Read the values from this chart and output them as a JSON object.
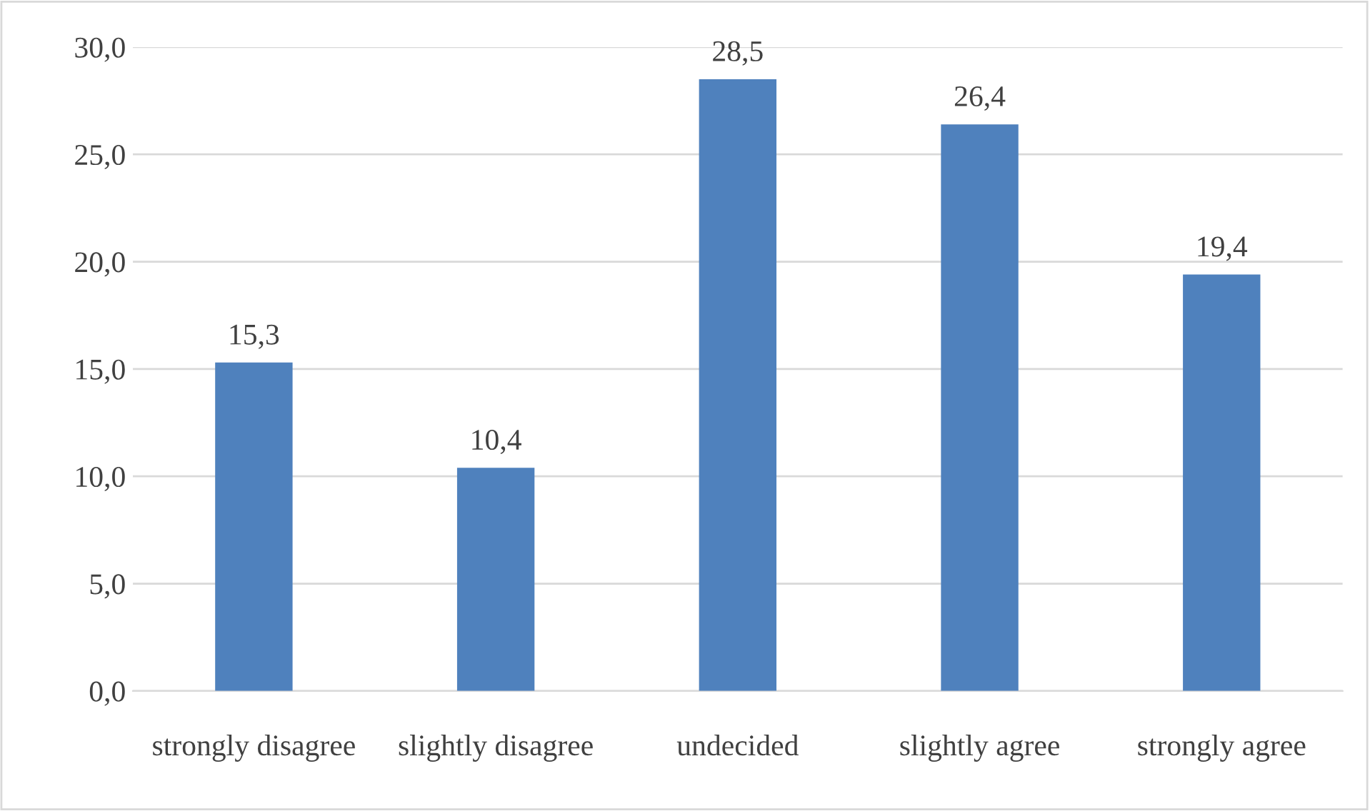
{
  "chart_data": {
    "type": "bar",
    "categories": [
      "strongly disagree",
      "slightly disagree",
      "undecided",
      "slightly agree",
      "strongly agree"
    ],
    "values": [
      15.3,
      10.4,
      28.5,
      26.4,
      19.4
    ],
    "color": "#4f81bd",
    "value_labels": [
      "15,3",
      "10,4",
      "28,5",
      "26,4",
      "19,4"
    ],
    "ylim": [
      0,
      30
    ],
    "yticks": [
      {
        "value": 0,
        "label": "0,0"
      },
      {
        "value": 5,
        "label": "5,0"
      },
      {
        "value": 10,
        "label": "10,0"
      },
      {
        "value": 15,
        "label": "15,0"
      },
      {
        "value": 20,
        "label": "20,0"
      },
      {
        "value": 25,
        "label": "25,0"
      },
      {
        "value": 30,
        "label": "30,0"
      }
    ],
    "grid": "y",
    "legend": false
  }
}
